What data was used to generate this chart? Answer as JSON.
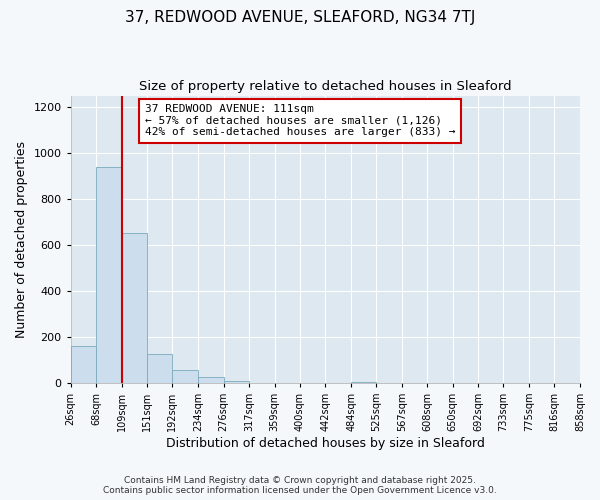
{
  "title": "37, REDWOOD AVENUE, SLEAFORD, NG34 7TJ",
  "subtitle": "Size of property relative to detached houses in Sleaford",
  "xlabel": "Distribution of detached houses by size in Sleaford",
  "ylabel": "Number of detached properties",
  "bar_color": "#ccdded",
  "bar_edge_color": "#7aaabb",
  "background_color": "#dde8f0",
  "fig_background_color": "#f5f8fb",
  "grid_color": "#ffffff",
  "bins": [
    26,
    68,
    109,
    151,
    192,
    234,
    276,
    317,
    359,
    400,
    442,
    484,
    525,
    567,
    608,
    650,
    692,
    733,
    775,
    816,
    858
  ],
  "bin_labels": [
    "26sqm",
    "68sqm",
    "109sqm",
    "151sqm",
    "192sqm",
    "234sqm",
    "276sqm",
    "317sqm",
    "359sqm",
    "400sqm",
    "442sqm",
    "484sqm",
    "525sqm",
    "567sqm",
    "608sqm",
    "650sqm",
    "692sqm",
    "733sqm",
    "775sqm",
    "816sqm",
    "858sqm"
  ],
  "counts": [
    160,
    940,
    650,
    125,
    55,
    25,
    10,
    0,
    0,
    0,
    0,
    5,
    0,
    0,
    0,
    0,
    0,
    0,
    0,
    0
  ],
  "ylim": [
    0,
    1250
  ],
  "yticks": [
    0,
    200,
    400,
    600,
    800,
    1000,
    1200
  ],
  "property_line_x": 109,
  "property_line_color": "#cc0000",
  "ann_line1": "37 REDWOOD AVENUE: 111sqm",
  "ann_line2": "← 57% of detached houses are smaller (1,126)",
  "ann_line3": "42% of semi-detached houses are larger (833) →",
  "annotation_box_color": "#ffffff",
  "annotation_box_edge_color": "#cc0000",
  "footer_line1": "Contains HM Land Registry data © Crown copyright and database right 2025.",
  "footer_line2": "Contains public sector information licensed under the Open Government Licence v3.0."
}
